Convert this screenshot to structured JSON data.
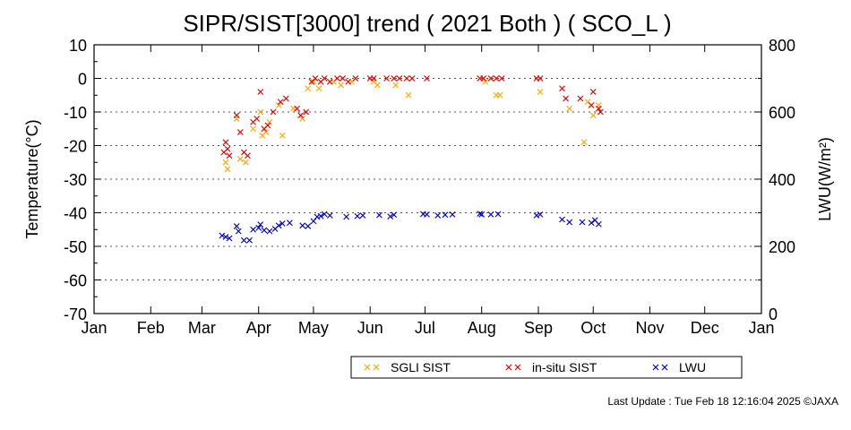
{
  "chart_data": {
    "type": "scatter",
    "title": "SIPR/SIST[3000] trend ( 2021 Both ) ( SCO_L )",
    "ylabel": "Temperature(°C)",
    "y2label": "LWU(W/m²)",
    "x_ticks": [
      "Jan",
      "Feb",
      "Mar",
      "Apr",
      "May",
      "Jun",
      "Jul",
      "Aug",
      "Sep",
      "Oct",
      "Nov",
      "Dec",
      "Jan"
    ],
    "xlim": [
      "2021-01-01",
      "2022-01-01"
    ],
    "ylim": [
      -70,
      10
    ],
    "y_ticks": [
      10,
      0,
      -10,
      -20,
      -30,
      -40,
      -50,
      -60,
      -70
    ],
    "y2lim": [
      0,
      800
    ],
    "y2_ticks": [
      800,
      600,
      400,
      200,
      0
    ],
    "grid": true,
    "legend_position": "bottom",
    "series": [
      {
        "name": "SGLI SIST",
        "axis": "left",
        "color": "#ffa500",
        "points": [
          {
            "date": "2021-03-14",
            "y": -25
          },
          {
            "date": "2021-03-15",
            "y": -27
          },
          {
            "date": "2021-03-20",
            "y": -12
          },
          {
            "date": "2021-03-22",
            "y": -24
          },
          {
            "date": "2021-03-25",
            "y": -25
          },
          {
            "date": "2021-03-29",
            "y": -15
          },
          {
            "date": "2021-04-02",
            "y": -10
          },
          {
            "date": "2021-04-03",
            "y": -17
          },
          {
            "date": "2021-04-05",
            "y": -16
          },
          {
            "date": "2021-04-07",
            "y": -13
          },
          {
            "date": "2021-04-12",
            "y": -8
          },
          {
            "date": "2021-04-14",
            "y": -17
          },
          {
            "date": "2021-04-20",
            "y": -9
          },
          {
            "date": "2021-04-25",
            "y": -12
          },
          {
            "date": "2021-04-28",
            "y": -3
          },
          {
            "date": "2021-05-01",
            "y": -1
          },
          {
            "date": "2021-05-04",
            "y": -3
          },
          {
            "date": "2021-05-12",
            "y": -1
          },
          {
            "date": "2021-05-16",
            "y": -2
          },
          {
            "date": "2021-05-22",
            "y": -1
          },
          {
            "date": "2021-06-03",
            "y": -1
          },
          {
            "date": "2021-06-05",
            "y": -2
          },
          {
            "date": "2021-06-15",
            "y": -2
          },
          {
            "date": "2021-06-22",
            "y": -5
          },
          {
            "date": "2021-08-03",
            "y": -1
          },
          {
            "date": "2021-08-09",
            "y": -5
          },
          {
            "date": "2021-08-11",
            "y": -5
          },
          {
            "date": "2021-09-02",
            "y": -4
          },
          {
            "date": "2021-09-18",
            "y": -9
          },
          {
            "date": "2021-09-26",
            "y": -19
          },
          {
            "date": "2021-09-28",
            "y": -7
          },
          {
            "date": "2021-10-01",
            "y": -11
          },
          {
            "date": "2021-10-04",
            "y": -8
          }
        ]
      },
      {
        "name": "in-situ SIST",
        "axis": "left",
        "color": "#e00000",
        "points": [
          {
            "date": "2021-03-13",
            "y": -22
          },
          {
            "date": "2021-03-14",
            "y": -19
          },
          {
            "date": "2021-03-15",
            "y": -21
          },
          {
            "date": "2021-03-16",
            "y": -23
          },
          {
            "date": "2021-03-20",
            "y": -11
          },
          {
            "date": "2021-03-22",
            "y": -16
          },
          {
            "date": "2021-03-24",
            "y": -22
          },
          {
            "date": "2021-03-26",
            "y": -23
          },
          {
            "date": "2021-03-29",
            "y": -13
          },
          {
            "date": "2021-03-31",
            "y": -12
          },
          {
            "date": "2021-04-02",
            "y": -4
          },
          {
            "date": "2021-04-04",
            "y": -15
          },
          {
            "date": "2021-04-06",
            "y": -14
          },
          {
            "date": "2021-04-09",
            "y": -10
          },
          {
            "date": "2021-04-13",
            "y": -7
          },
          {
            "date": "2021-04-16",
            "y": -6
          },
          {
            "date": "2021-04-22",
            "y": -9
          },
          {
            "date": "2021-04-24",
            "y": -11
          },
          {
            "date": "2021-04-27",
            "y": -10
          },
          {
            "date": "2021-04-30",
            "y": -1
          },
          {
            "date": "2021-05-02",
            "y": 0
          },
          {
            "date": "2021-05-05",
            "y": -1
          },
          {
            "date": "2021-05-07",
            "y": 0
          },
          {
            "date": "2021-05-10",
            "y": -1
          },
          {
            "date": "2021-05-14",
            "y": 0
          },
          {
            "date": "2021-05-17",
            "y": 0
          },
          {
            "date": "2021-05-20",
            "y": -1
          },
          {
            "date": "2021-05-24",
            "y": 0
          },
          {
            "date": "2021-06-01",
            "y": 0
          },
          {
            "date": "2021-06-03",
            "y": 0
          },
          {
            "date": "2021-06-10",
            "y": 0
          },
          {
            "date": "2021-06-14",
            "y": 0
          },
          {
            "date": "2021-06-17",
            "y": 0
          },
          {
            "date": "2021-06-21",
            "y": 0
          },
          {
            "date": "2021-06-24",
            "y": 0
          },
          {
            "date": "2021-07-02",
            "y": 0
          },
          {
            "date": "2021-07-31",
            "y": 0
          },
          {
            "date": "2021-08-02",
            "y": 0
          },
          {
            "date": "2021-08-06",
            "y": 0
          },
          {
            "date": "2021-08-09",
            "y": 0
          },
          {
            "date": "2021-08-12",
            "y": 0
          },
          {
            "date": "2021-08-31",
            "y": 0
          },
          {
            "date": "2021-09-02",
            "y": 0
          },
          {
            "date": "2021-09-14",
            "y": -3
          },
          {
            "date": "2021-09-16",
            "y": -6
          },
          {
            "date": "2021-09-24",
            "y": -6
          },
          {
            "date": "2021-09-30",
            "y": -8
          },
          {
            "date": "2021-10-01",
            "y": -4
          },
          {
            "date": "2021-10-04",
            "y": -9
          },
          {
            "date": "2021-10-05",
            "y": -10
          }
        ]
      },
      {
        "name": "LWU",
        "axis": "right",
        "color": "#0000cc",
        "points": [
          {
            "date": "2021-03-12",
            "y": 232
          },
          {
            "date": "2021-03-14",
            "y": 228
          },
          {
            "date": "2021-03-16",
            "y": 224
          },
          {
            "date": "2021-03-20",
            "y": 260
          },
          {
            "date": "2021-03-21",
            "y": 245
          },
          {
            "date": "2021-03-24",
            "y": 218
          },
          {
            "date": "2021-03-27",
            "y": 218
          },
          {
            "date": "2021-03-29",
            "y": 250
          },
          {
            "date": "2021-04-01",
            "y": 255
          },
          {
            "date": "2021-04-02",
            "y": 265
          },
          {
            "date": "2021-04-04",
            "y": 248
          },
          {
            "date": "2021-04-07",
            "y": 245
          },
          {
            "date": "2021-04-10",
            "y": 252
          },
          {
            "date": "2021-04-12",
            "y": 262
          },
          {
            "date": "2021-04-14",
            "y": 268
          },
          {
            "date": "2021-04-18",
            "y": 270
          },
          {
            "date": "2021-04-25",
            "y": 262
          },
          {
            "date": "2021-04-28",
            "y": 260
          },
          {
            "date": "2021-05-01",
            "y": 275
          },
          {
            "date": "2021-05-03",
            "y": 288
          },
          {
            "date": "2021-05-05",
            "y": 290
          },
          {
            "date": "2021-05-07",
            "y": 296
          },
          {
            "date": "2021-05-10",
            "y": 292
          },
          {
            "date": "2021-05-19",
            "y": 288
          },
          {
            "date": "2021-05-25",
            "y": 290
          },
          {
            "date": "2021-05-28",
            "y": 292
          },
          {
            "date": "2021-06-06",
            "y": 293
          },
          {
            "date": "2021-06-12",
            "y": 289
          },
          {
            "date": "2021-06-14",
            "y": 294
          },
          {
            "date": "2021-06-30",
            "y": 296
          },
          {
            "date": "2021-07-02",
            "y": 295
          },
          {
            "date": "2021-07-08",
            "y": 292
          },
          {
            "date": "2021-07-12",
            "y": 294
          },
          {
            "date": "2021-07-16",
            "y": 295
          },
          {
            "date": "2021-07-31",
            "y": 297
          },
          {
            "date": "2021-08-01",
            "y": 295
          },
          {
            "date": "2021-08-06",
            "y": 295
          },
          {
            "date": "2021-08-10",
            "y": 296
          },
          {
            "date": "2021-08-31",
            "y": 292
          },
          {
            "date": "2021-09-02",
            "y": 295
          },
          {
            "date": "2021-09-14",
            "y": 280
          },
          {
            "date": "2021-09-18",
            "y": 272
          },
          {
            "date": "2021-09-25",
            "y": 272
          },
          {
            "date": "2021-09-30",
            "y": 270
          },
          {
            "date": "2021-10-02",
            "y": 278
          },
          {
            "date": "2021-10-04",
            "y": 266
          }
        ]
      }
    ]
  },
  "footer": {
    "last_update": "Last Update : Tue Feb 18 12:16:04 2025 ©JAXA"
  }
}
